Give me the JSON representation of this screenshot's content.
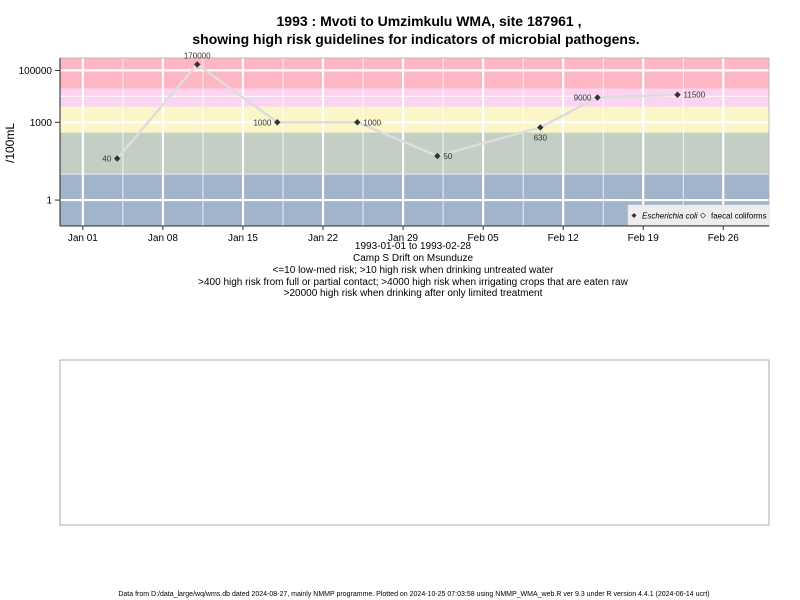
{
  "chart_data": {
    "type": "line",
    "title_line1": "1993 : Mvoti to Umzimkulu WMA, site 187961 ,",
    "title_line2": "showing high risk guidelines for indicators of microbial pathogens.",
    "ylabel": "/100mL",
    "y_scale": "log10",
    "ylim": [
      0.1,
      300000
    ],
    "xlim": [
      "1992-12-30",
      "1993-03-02"
    ],
    "x_ticks": [
      {
        "date": "1993-01-01",
        "label": "Jan 01"
      },
      {
        "date": "1993-01-08",
        "label": "Jan 08"
      },
      {
        "date": "1993-01-15",
        "label": "Jan 15"
      },
      {
        "date": "1993-01-22",
        "label": "Jan 22"
      },
      {
        "date": "1993-01-29",
        "label": "Jan 29"
      },
      {
        "date": "1993-02-05",
        "label": "Feb 05"
      },
      {
        "date": "1993-02-12",
        "label": "Feb 12"
      },
      {
        "date": "1993-02-19",
        "label": "Feb 19"
      },
      {
        "date": "1993-02-26",
        "label": "Feb 26"
      }
    ],
    "y_ticks": [
      {
        "value": 1,
        "label": "1"
      },
      {
        "value": 1000,
        "label": "1000"
      },
      {
        "value": 100000,
        "label": "100000"
      }
    ],
    "bands": [
      {
        "from": 0.1,
        "to": 10,
        "color": "#a2b4cc"
      },
      {
        "from": 10,
        "to": 400,
        "color": "#c3cec4"
      },
      {
        "from": 400,
        "to": 4000,
        "color": "#fbf5c8"
      },
      {
        "from": 4000,
        "to": 20000,
        "color": "#fbd4f1"
      },
      {
        "from": 20000,
        "to": 300000,
        "color": "#feb6c2"
      }
    ],
    "grid": true,
    "legend_position": "bottom-right",
    "series": [
      {
        "name": "Escherichia coli",
        "color": "#333333",
        "marker": "filled-diamond",
        "points": [
          {
            "x": "1993-01-04",
            "y": 40,
            "label": "40",
            "label_pos": "left"
          },
          {
            "x": "1993-01-11",
            "y": 170000,
            "label": "170000",
            "label_pos": "above"
          },
          {
            "x": "1993-01-18",
            "y": 1000,
            "label": "1000",
            "label_pos": "left"
          },
          {
            "x": "1993-01-25",
            "y": 1000,
            "label": "1000",
            "label_pos": "right"
          },
          {
            "x": "1993-02-01",
            "y": 50,
            "label": "50",
            "label_pos": "right"
          },
          {
            "x": "1993-02-10",
            "y": 630,
            "label": "630",
            "label_pos": "below"
          },
          {
            "x": "1993-02-15",
            "y": 9000,
            "label": "9000",
            "label_pos": "left"
          },
          {
            "x": "1993-02-22",
            "y": 11500,
            "label": "11500",
            "label_pos": "right"
          }
        ]
      },
      {
        "name": "faecal coliforms",
        "color": "#666666",
        "marker": "open-diamond",
        "points": []
      }
    ],
    "captions": [
      "1993-01-01 to 1993-02-28",
      "Camp S Drift on Msunduze",
      "<=10 low-med risk; >10 high risk when drinking untreated water",
      ">400 high risk from full or partial contact; >4000 high risk when irrigating crops that are eaten raw",
      ">20000 high risk when drinking after only limited treatment"
    ]
  },
  "footer": "Data from D:/data_large/wq/wms.db dated 2024-08-27, mainly NMMP programme. Plotted on 2024-10-25 07:03:58 using NMMP_WMA_web.R ver 9.3 under R version 4.4.1 (2024-06-14 ucrt)",
  "colors": {
    "line": "#dddddd",
    "grid": "#ffffff",
    "axis": "#000000",
    "empty_panel_border": "#999999"
  }
}
